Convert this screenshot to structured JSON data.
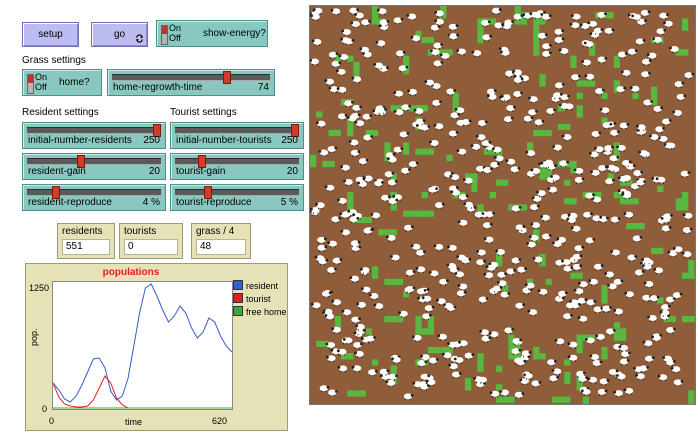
{
  "buttons": {
    "setup": "setup",
    "go": "go"
  },
  "switches": {
    "show_energy": {
      "state_on": "On",
      "state_off": "Off",
      "label": "show-energy?"
    },
    "home": {
      "state_on": "On",
      "state_off": "Off",
      "label": "home?"
    }
  },
  "sections": {
    "grass": "Grass settings",
    "resident": "Resident settings",
    "tourist": "Tourist settings"
  },
  "sliders": {
    "home_regrowth_time": {
      "name": "home-regrowth-time",
      "value": "74",
      "fraction": 0.74
    },
    "initial_number_residents": {
      "name": "initial-number-residents",
      "value": "250",
      "fraction": 1.0
    },
    "initial_number_tourists": {
      "name": "initial-number-tourists",
      "value": "250",
      "fraction": 1.0
    },
    "resident_gain": {
      "name": "resident-gain",
      "value": "20",
      "fraction": 0.4
    },
    "tourist_gain": {
      "name": "tourist-gain",
      "value": "20",
      "fraction": 0.2
    },
    "resident_reproduce": {
      "name": "resident-reproduce",
      "value": "4 %",
      "fraction": 0.2
    },
    "tourist_reproduce": {
      "name": "tourist-reproduce",
      "value": "5 %",
      "fraction": 0.25
    }
  },
  "monitors": {
    "residents": {
      "label": "residents",
      "value": "551"
    },
    "tourists": {
      "label": "tourists",
      "value": "0"
    },
    "grass": {
      "label": "grass / 4",
      "value": "48"
    }
  },
  "plot": {
    "title": "populations",
    "ylabel": "pop.",
    "xlabel": "time",
    "y_max_label": "1250",
    "y_min_label": "0",
    "x_min_label": "0",
    "x_max_label": "620",
    "legend": [
      {
        "name": "resident",
        "color": "#3460c8"
      },
      {
        "name": "tourist",
        "color": "#e02020"
      },
      {
        "name": "free home",
        "color": "#3ca83c"
      }
    ]
  },
  "chart_data": {
    "type": "line",
    "title": "populations",
    "xlabel": "time",
    "ylabel": "pop.",
    "xlim": [
      0,
      620
    ],
    "ylim": [
      0,
      1250
    ],
    "series": [
      {
        "name": "resident",
        "color": "#3460c8",
        "x": [
          0,
          20,
          40,
          60,
          80,
          100,
          120,
          140,
          160,
          180,
          200,
          220,
          240,
          260,
          280,
          300,
          320,
          340,
          360,
          380,
          400,
          420,
          440,
          460,
          480,
          500,
          520,
          540,
          560,
          580,
          600,
          620
        ],
        "y": [
          250,
          180,
          90,
          60,
          120,
          230,
          360,
          490,
          500,
          400,
          170,
          80,
          120,
          300,
          620,
          950,
          1200,
          1240,
          1120,
          980,
          860,
          920,
          1020,
          950,
          800,
          700,
          760,
          900,
          860,
          720,
          620,
          560
        ]
      },
      {
        "name": "tourist",
        "color": "#e02020",
        "x": [
          0,
          20,
          40,
          60,
          80,
          100,
          120,
          140,
          160,
          180,
          200,
          220,
          240,
          260,
          280,
          300,
          320,
          340,
          360,
          380,
          400,
          420,
          440,
          460,
          480,
          500,
          520,
          540,
          560,
          580,
          600,
          620
        ],
        "y": [
          250,
          110,
          40,
          20,
          10,
          10,
          20,
          80,
          200,
          320,
          250,
          100,
          30,
          0,
          0,
          0,
          0,
          0,
          0,
          0,
          0,
          0,
          0,
          0,
          0,
          0,
          0,
          0,
          0,
          0,
          0,
          0
        ]
      },
      {
        "name": "free home",
        "color": "#3ca83c",
        "x": [
          0,
          620
        ],
        "y": [
          0,
          0
        ]
      }
    ]
  },
  "colors": {
    "button": "#bcbcf0",
    "widget": "#88c8c0",
    "monitor": "#e6e2b8",
    "ground": "#8f5d3a",
    "grass": "#58b840",
    "agent": "#ffffff"
  }
}
